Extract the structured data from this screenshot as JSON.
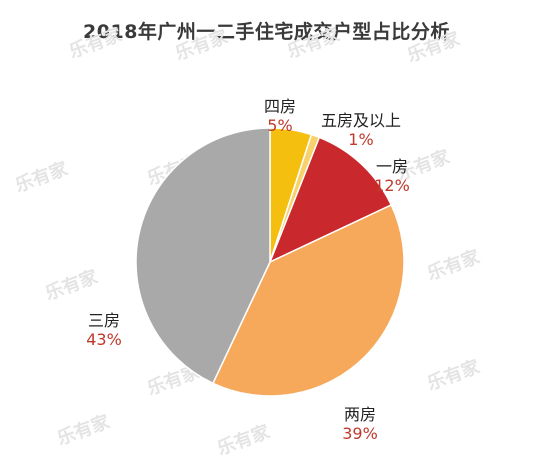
{
  "title": "2018年广州一二手住宅成交户型占比分析",
  "watermark": "乐有家",
  "chart_data": {
    "type": "pie",
    "title": "2018年广州一二手住宅成交户型占比分析",
    "slices": [
      {
        "label": "四房",
        "value": 5,
        "value_label": "5%",
        "color": "#f5bf0f"
      },
      {
        "label": "五房及以上",
        "value": 1,
        "value_label": "1%",
        "color": "#f7d26a"
      },
      {
        "label": "一房",
        "value": 12,
        "value_label": "12%",
        "color": "#c9282c"
      },
      {
        "label": "两房",
        "value": 39,
        "value_label": "39%",
        "color": "#f6a95a"
      },
      {
        "label": "三房",
        "value": 43,
        "value_label": "43%",
        "color": "#a9a9a9"
      }
    ],
    "legend": "none",
    "start_angle": "12 o'clock",
    "direction": "clockwise"
  }
}
